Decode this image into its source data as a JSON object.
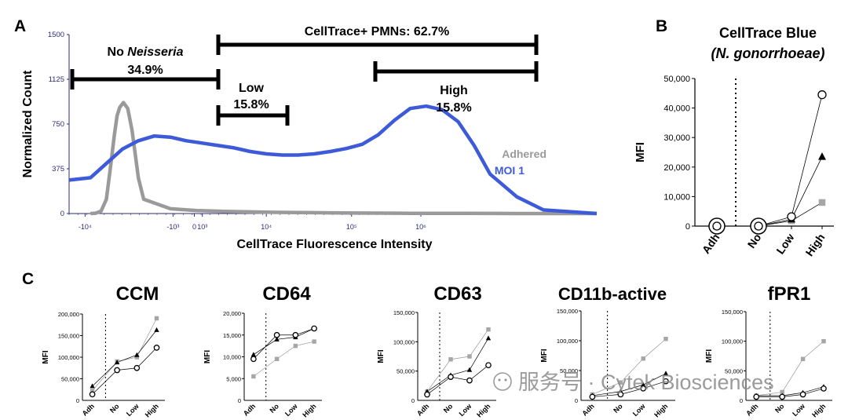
{
  "panel_labels": {
    "a": "A",
    "b": "B",
    "c": "C"
  },
  "colors": {
    "adhered": "#9a9a9a",
    "moi": "#3d5bd9",
    "axis": "#2a2a7a",
    "high": "#a6a6a6"
  },
  "chart_data": [
    {
      "id": "A",
      "type": "line",
      "title": "",
      "xlabel": "CellTrace Fluorescence Intensity",
      "ylabel": "Normalized Count",
      "yticks": [
        "0",
        "375",
        "750",
        "1125",
        "1500"
      ],
      "ylim": [
        0,
        1500
      ],
      "xticks": [
        "-10⁴",
        "-10³",
        "0",
        "10³",
        "10⁴",
        "10⁵",
        "10⁶"
      ],
      "legend": [
        {
          "label": "Adhered",
          "color": "#9a9a9a"
        },
        {
          "label": "MOI 1",
          "color": "#3d5bd9"
        }
      ],
      "gates": [
        {
          "label": "CellTrace+ PMNs: 62.7%",
          "from": "10³",
          "to": "10⁶"
        },
        {
          "label": "No",
          "label_italic": "Neisseria",
          "percent": "34.9%",
          "from": "-10⁴",
          "to": "10³"
        },
        {
          "label": "Low",
          "percent": "15.8%",
          "from": "10³",
          "to": "~5×10³"
        },
        {
          "label": "High",
          "percent": "15.8%",
          "from": "~3×10⁴",
          "to": "10⁶"
        }
      ],
      "series": [
        {
          "name": "Adhered",
          "x": [
            0,
            0.1,
            0.2,
            0.3,
            0.38,
            0.45,
            0.5,
            0.55,
            0.62,
            0.7,
            0.78,
            0.85,
            0.9,
            1,
            1.5,
            2,
            2.5,
            3,
            3.5,
            4,
            4.5,
            5,
            5.5,
            6,
            7,
            8,
            9.5
          ],
          "y": [
            0,
            3,
            20,
            120,
            400,
            660,
            820,
            890,
            930,
            880,
            700,
            470,
            300,
            120,
            40,
            25,
            18,
            14,
            10,
            8,
            6,
            4,
            3,
            2,
            1,
            0,
            0
          ]
        },
        {
          "name": "MOI 1",
          "x": [
            -0.4,
            0,
            0.3,
            0.6,
            0.9,
            1.2,
            1.5,
            1.8,
            2.1,
            2.4,
            2.7,
            3.0,
            3.3,
            3.6,
            3.9,
            4.2,
            4.5,
            4.8,
            5.1,
            5.4,
            5.7,
            6.0,
            6.3,
            6.6,
            6.9,
            7.2,
            7.5,
            8.0,
            8.5,
            9.5
          ],
          "y": [
            280,
            300,
            420,
            540,
            610,
            650,
            640,
            610,
            590,
            570,
            550,
            520,
            500,
            490,
            490,
            500,
            520,
            545,
            580,
            660,
            780,
            880,
            900,
            870,
            770,
            570,
            330,
            140,
            30,
            0
          ]
        }
      ]
    },
    {
      "id": "B",
      "type": "scatter",
      "title": "CellTrace Blue",
      "subtitle": "(N. gonorrhoeae)",
      "xlabel": "",
      "ylabel": "MFI",
      "categories": [
        "Adh",
        "No",
        "Low",
        "High"
      ],
      "yticks": [
        "0",
        "10,000",
        "20,000",
        "30,000",
        "40,000",
        "50,000"
      ],
      "ylim": [
        0,
        50000
      ],
      "series": [
        {
          "name": "donor-circle",
          "marker": "circle-open",
          "values": [
            0,
            0,
            3200,
            44500
          ]
        },
        {
          "name": "donor-triangle",
          "marker": "triangle",
          "values": [
            0,
            0,
            2300,
            23500
          ]
        },
        {
          "name": "donor-square",
          "marker": "square-gray",
          "values": [
            0,
            0,
            1800,
            8000
          ]
        }
      ]
    },
    {
      "id": "C-CCM",
      "type": "scatter",
      "title": "CCM",
      "ylabel": "MFI",
      "categories": [
        "Adh",
        "No",
        "Low",
        "High"
      ],
      "yticks": [
        "50,000",
        "100,000",
        "150,000",
        "200,000"
      ],
      "ylim": [
        0,
        200000
      ],
      "series": [
        {
          "name": "square",
          "marker": "square-gray",
          "values": [
            22000,
            90000,
            100000,
            190000
          ]
        },
        {
          "name": "triangle",
          "marker": "triangle",
          "values": [
            33000,
            88000,
            105000,
            163000
          ]
        },
        {
          "name": "circle",
          "marker": "circle-open",
          "values": [
            14000,
            70000,
            75000,
            122000
          ]
        }
      ]
    },
    {
      "id": "C-CD64",
      "type": "scatter",
      "title": "CD64",
      "ylabel": "MFI",
      "categories": [
        "Adh",
        "No",
        "Low",
        "High"
      ],
      "yticks": [
        "5,000",
        "10,000",
        "15,000",
        "20,000"
      ],
      "ylim": [
        0,
        20000
      ],
      "series": [
        {
          "name": "square",
          "marker": "square-gray",
          "values": [
            5500,
            9500,
            12500,
            13500
          ]
        },
        {
          "name": "triangle",
          "marker": "triangle",
          "values": [
            10500,
            14000,
            14500,
            16500
          ]
        },
        {
          "name": "circle",
          "marker": "circle-open",
          "values": [
            9500,
            15000,
            15000,
            16500
          ]
        }
      ]
    },
    {
      "id": "C-CD63",
      "type": "scatter",
      "title": "CD63",
      "ylabel": "MFI",
      "categories": [
        "Adh",
        "No",
        "Low",
        "High"
      ],
      "yticks": [
        "50,000",
        "100,000",
        "150,000"
      ],
      "ylim": [
        0,
        150000
      ],
      "series": [
        {
          "name": "square",
          "marker": "square-gray",
          "values": [
            15000,
            70000,
            75000,
            121000
          ]
        },
        {
          "name": "triangle",
          "marker": "triangle",
          "values": [
            15000,
            43000,
            52000,
            106000
          ]
        },
        {
          "name": "circle",
          "marker": "circle-open",
          "values": [
            10000,
            40000,
            34000,
            60000
          ]
        }
      ]
    },
    {
      "id": "C-CD11b",
      "type": "scatter",
      "title": "CD11b-active",
      "ylabel": "MFI",
      "categories": [
        "Adh",
        "No",
        "Low",
        "High"
      ],
      "yticks": [
        "50,000",
        "100,000",
        "150,000"
      ],
      "ylim": [
        0,
        150000
      ],
      "series": [
        {
          "name": "square",
          "marker": "square-gray",
          "values": [
            10000,
            30000,
            70000,
            103000
          ]
        },
        {
          "name": "triangle",
          "marker": "triangle",
          "values": [
            8000,
            15000,
            26000,
            45000
          ]
        },
        {
          "name": "circle",
          "marker": "circle-open",
          "values": [
            6000,
            10000,
            20000,
            32000
          ]
        }
      ]
    },
    {
      "id": "C-fPR1",
      "type": "scatter",
      "title": "fPR1",
      "ylabel": "MFI",
      "categories": [
        "Adh",
        "No",
        "Low",
        "High"
      ],
      "yticks": [
        "50,000",
        "100,000",
        "150,000"
      ],
      "ylim": [
        0,
        150000
      ],
      "series": [
        {
          "name": "square",
          "marker": "square-gray",
          "values": [
            8000,
            14000,
            70000,
            100000
          ]
        },
        {
          "name": "triangle",
          "marker": "triangle",
          "values": [
            8000,
            8000,
            13000,
            23000
          ]
        },
        {
          "name": "circle",
          "marker": "circle-open",
          "values": [
            6000,
            6000,
            10000,
            20000
          ]
        }
      ]
    }
  ],
  "watermark": "服务号 · Cytek Biosciences"
}
